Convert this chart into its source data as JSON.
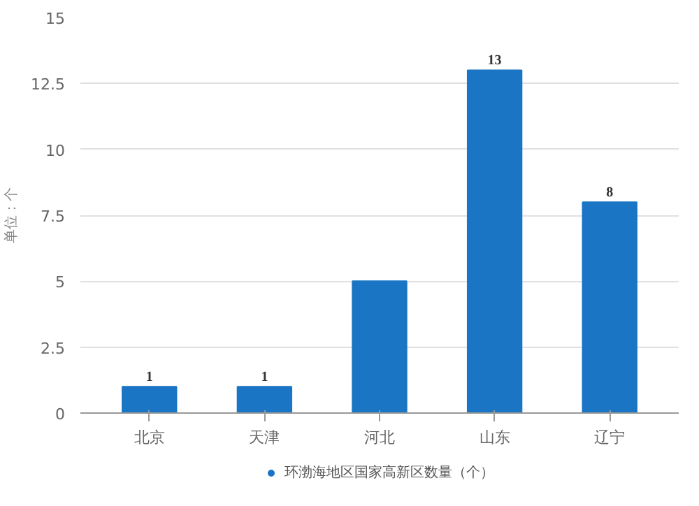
{
  "chart_data": {
    "type": "bar",
    "ylabel": "单位：个",
    "categories": [
      "北京",
      "天津",
      "河北",
      "山东",
      "辽宁"
    ],
    "series": [
      {
        "name": "环渤海地区国家高新区数量（个）",
        "color": "#1a75c4",
        "values": [
          1,
          1,
          5,
          13,
          8
        ],
        "value_labels": [
          "1",
          "1",
          null,
          "13",
          "8"
        ]
      }
    ],
    "ylim": [
      0,
      15
    ],
    "yticks": [
      0,
      2.5,
      5,
      7.5,
      10,
      12.5,
      15
    ],
    "grid": "y",
    "legend": "bottom"
  }
}
